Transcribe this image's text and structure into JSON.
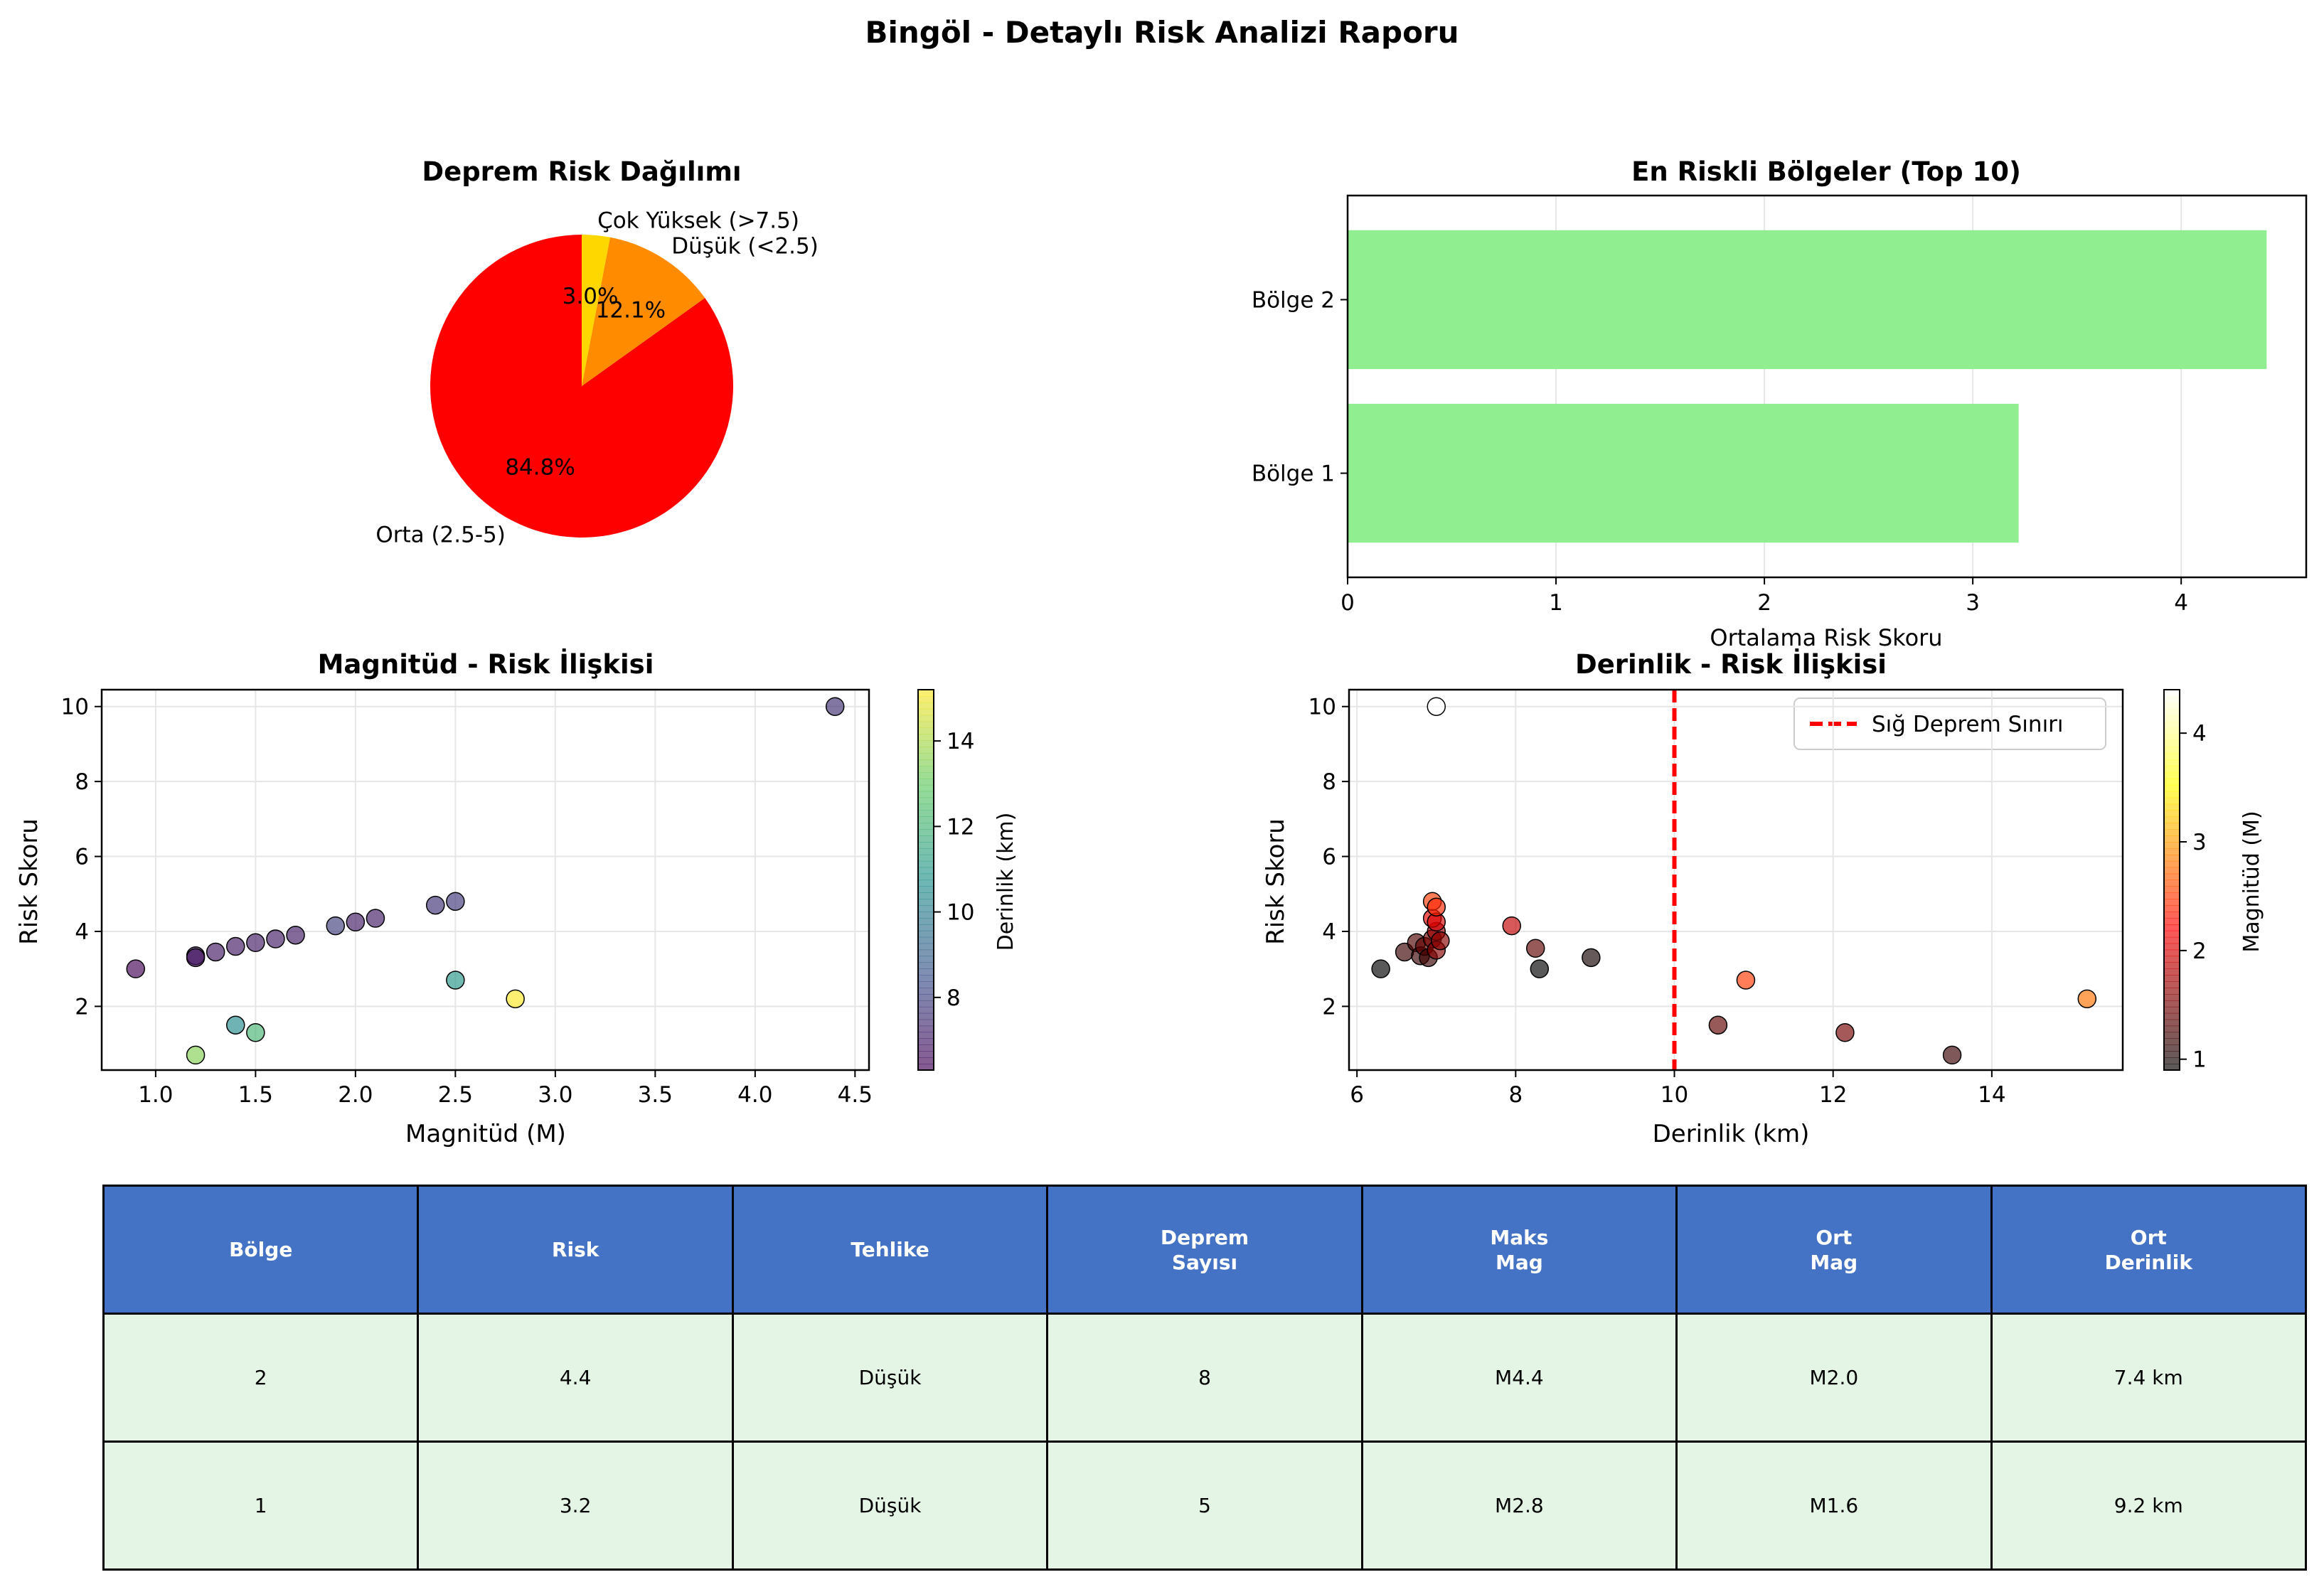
{
  "title": "Bingöl - Detaylı Risk Analizi Raporu",
  "chart_data": [
    {
      "type": "pie",
      "title": "Deprem Risk Dağılımı",
      "labels": [
        "Orta (2.5-5)",
        "Düşük (<2.5)",
        "Çok Yüksek (>7.5)"
      ],
      "values": [
        84.8,
        12.1,
        3.0
      ],
      "pct_labels": [
        "84.8%",
        "12.1%",
        "3.0%"
      ],
      "colors": [
        "#ff0000",
        "#ff8c00",
        "#ffd700"
      ]
    },
    {
      "type": "bar",
      "orientation": "horizontal",
      "title": "En Riskli Bölgeler (Top 10)",
      "categories": [
        "Bölge 1",
        "Bölge 2"
      ],
      "values": [
        3.22,
        4.41
      ],
      "xlabel": "Ortalama Risk Skoru",
      "xlim": [
        0,
        4.6
      ],
      "xticks": [
        "0",
        "1",
        "2",
        "3",
        "4"
      ],
      "grid": true,
      "color": "#90ee90"
    },
    {
      "type": "scatter",
      "title": "Magnitüd - Risk İlişkisi",
      "xlabel": "Magnitüd (M)",
      "ylabel": "Risk Skoru",
      "xlim": [
        0.73,
        4.57
      ],
      "ylim": [
        0.3,
        10.45
      ],
      "xticks": [
        "1.0",
        "1.5",
        "2.0",
        "2.5",
        "3.0",
        "3.5",
        "4.0",
        "4.5"
      ],
      "yticks": [
        "2",
        "4",
        "6",
        "8",
        "10"
      ],
      "colorbar_label": "Derinlik (km)",
      "colorbar_ticks": [
        "8",
        "10",
        "12",
        "14"
      ],
      "grid": true,
      "points": [
        {
          "x": 0.9,
          "y": 3.0,
          "c": 6.3
        },
        {
          "x": 1.2,
          "y": 3.35,
          "c": 6.9
        },
        {
          "x": 1.2,
          "y": 3.3,
          "c": 6.8
        },
        {
          "x": 1.3,
          "y": 3.45,
          "c": 6.9
        },
        {
          "x": 1.4,
          "y": 3.6,
          "c": 6.9
        },
        {
          "x": 1.5,
          "y": 3.7,
          "c": 7.0
        },
        {
          "x": 1.6,
          "y": 3.8,
          "c": 7.0
        },
        {
          "x": 1.7,
          "y": 3.9,
          "c": 7.0
        },
        {
          "x": 1.9,
          "y": 4.15,
          "c": 7.95
        },
        {
          "x": 2.0,
          "y": 4.25,
          "c": 7.0
        },
        {
          "x": 2.1,
          "y": 4.35,
          "c": 7.0
        },
        {
          "x": 2.4,
          "y": 4.7,
          "c": 7.6
        },
        {
          "x": 2.5,
          "y": 4.8,
          "c": 7.8
        },
        {
          "x": 4.4,
          "y": 10.0,
          "c": 7.5
        },
        {
          "x": 2.5,
          "y": 2.7,
          "c": 10.9
        },
        {
          "x": 2.8,
          "y": 2.2,
          "c": 15.2
        },
        {
          "x": 1.4,
          "y": 1.5,
          "c": 10.5
        },
        {
          "x": 1.5,
          "y": 1.3,
          "c": 12.1
        },
        {
          "x": 1.2,
          "y": 0.7,
          "c": 13.5
        }
      ]
    },
    {
      "type": "scatter",
      "title": "Derinlik - Risk İlişkisi",
      "xlabel": "Derinlik (km)",
      "ylabel": "Risk Skoru",
      "xlim": [
        5.9,
        15.65
      ],
      "ylim": [
        0.3,
        10.45
      ],
      "xticks": [
        "6",
        "8",
        "10",
        "12",
        "14"
      ],
      "yticks": [
        "2",
        "4",
        "6",
        "8",
        "10"
      ],
      "colorbar_label": "Magnitüd (M)",
      "colorbar_ticks": [
        "1",
        "2",
        "3",
        "4"
      ],
      "grid": true,
      "threshold": {
        "x": 10,
        "label": "Sığ Deprem Sınırı",
        "color": "#ff0000"
      },
      "points": [
        {
          "x": 7.0,
          "y": 10.0,
          "c": 4.4
        },
        {
          "x": 6.3,
          "y": 3.0,
          "c": 0.9
        },
        {
          "x": 6.6,
          "y": 3.45,
          "c": 1.2
        },
        {
          "x": 6.75,
          "y": 3.7,
          "c": 1.3
        },
        {
          "x": 6.8,
          "y": 3.35,
          "c": 1.2
        },
        {
          "x": 6.85,
          "y": 3.6,
          "c": 1.4
        },
        {
          "x": 6.9,
          "y": 3.3,
          "c": 1.2
        },
        {
          "x": 6.95,
          "y": 3.8,
          "c": 1.5
        },
        {
          "x": 7.0,
          "y": 3.5,
          "c": 1.6
        },
        {
          "x": 7.0,
          "y": 4.0,
          "c": 1.7
        },
        {
          "x": 6.95,
          "y": 4.35,
          "c": 2.1
        },
        {
          "x": 7.0,
          "y": 4.25,
          "c": 2.0
        },
        {
          "x": 6.95,
          "y": 4.8,
          "c": 2.5
        },
        {
          "x": 7.0,
          "y": 4.65,
          "c": 2.4
        },
        {
          "x": 7.05,
          "y": 3.75,
          "c": 1.6
        },
        {
          "x": 7.95,
          "y": 4.15,
          "c": 1.9
        },
        {
          "x": 8.25,
          "y": 3.55,
          "c": 1.4
        },
        {
          "x": 8.3,
          "y": 3.0,
          "c": 0.9
        },
        {
          "x": 8.95,
          "y": 3.3,
          "c": 1.0
        },
        {
          "x": 10.55,
          "y": 1.5,
          "c": 1.4
        },
        {
          "x": 10.9,
          "y": 2.7,
          "c": 2.5
        },
        {
          "x": 12.15,
          "y": 1.3,
          "c": 1.5
        },
        {
          "x": 13.5,
          "y": 0.7,
          "c": 1.2
        },
        {
          "x": 15.2,
          "y": 2.2,
          "c": 2.8
        }
      ]
    }
  ],
  "table": {
    "headers": [
      "Bölge",
      "Risk",
      "Tehlike",
      "Deprem\nSayısı",
      "Maks\nMag",
      "Ort\nMag",
      "Ort\nDerinlik"
    ],
    "rows": [
      [
        "2",
        "4.4",
        "Düşük",
        "8",
        "M4.4",
        "M2.0",
        "7.4 km"
      ],
      [
        "1",
        "3.2",
        "Düşük",
        "5",
        "M2.8",
        "M1.6",
        "9.2 km"
      ]
    ]
  }
}
